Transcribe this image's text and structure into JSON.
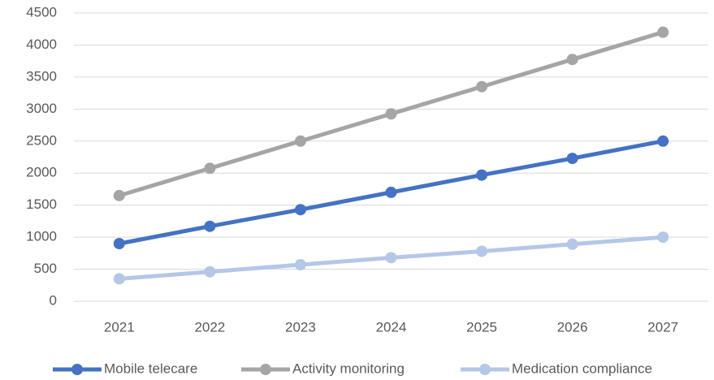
{
  "chart_data": {
    "type": "line",
    "categories": [
      "2021",
      "2022",
      "2023",
      "2024",
      "2025",
      "2026",
      "2027"
    ],
    "series": [
      {
        "name": "Mobile telecare",
        "color": "#4472c4",
        "values": [
          900,
          1170,
          1430,
          1700,
          1970,
          2230,
          2500
        ]
      },
      {
        "name": "Activity monitoring",
        "color": "#a5a5a5",
        "values": [
          1650,
          2075,
          2500,
          2925,
          3350,
          3775,
          4200
        ]
      },
      {
        "name": "Medication compliance",
        "color": "#b4c7e7",
        "values": [
          350,
          460,
          570,
          680,
          780,
          890,
          1000
        ]
      }
    ],
    "ylim": [
      0,
      4500
    ],
    "yticks": [
      0,
      500,
      1000,
      1500,
      2000,
      2500,
      3000,
      3500,
      4000,
      4500
    ],
    "grid": true,
    "legend": "bottom"
  }
}
